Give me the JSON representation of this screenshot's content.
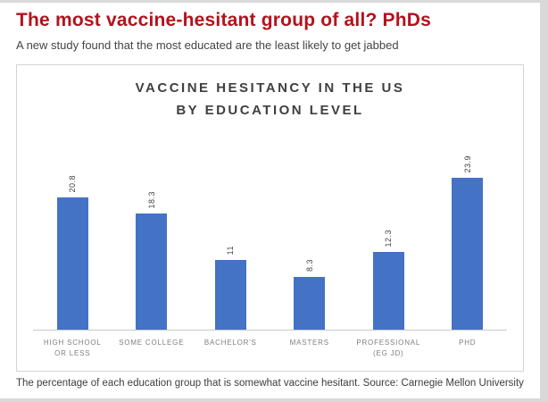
{
  "page": {
    "headline": "The most vaccine-hesitant group of all? PhDs",
    "subtitle": "A new study found that the most educated are the least likely to get jabbed",
    "caption": "The percentage of each education group that is somewhat vaccine hesitant. Source: Carnegie Mellon University"
  },
  "colors": {
    "headline_red": "#b3121c",
    "bar_blue": "#4472c4",
    "chart_border": "#d4d4d4",
    "axis_line": "#c9c9c9",
    "category_label": "#7f7f7f",
    "value_label": "#404040"
  },
  "chart_data": {
    "type": "bar",
    "title": "VACCINE HESITANCY IN THE US BY EDUCATION LEVEL",
    "title_lines": [
      "VACCINE HESITANCY IN THE US",
      "BY EDUCATION LEVEL"
    ],
    "categories": [
      "HIGH SCHOOL OR LESS",
      "SOME COLLEGE",
      "BACHELOR'S",
      "MASTERS",
      "PROFESSIONAL (EG JD)",
      "PHD"
    ],
    "category_lines": [
      [
        "HIGH SCHOOL",
        "OR LESS"
      ],
      [
        "SOME COLLEGE"
      ],
      [
        "BACHELOR'S"
      ],
      [
        "MASTERS"
      ],
      [
        "PROFESSIONAL",
        "(EG JD)"
      ],
      [
        "PHD"
      ]
    ],
    "values": [
      20.8,
      18.3,
      11,
      8.3,
      12.3,
      23.9
    ],
    "value_labels": [
      "20.8",
      "18.3",
      "11",
      "8.3",
      "12.3",
      "23.9"
    ],
    "ylim": [
      0,
      24
    ],
    "grid": false,
    "legend": false,
    "data_label_rotation": "vertical",
    "xlabel": "",
    "ylabel": ""
  }
}
